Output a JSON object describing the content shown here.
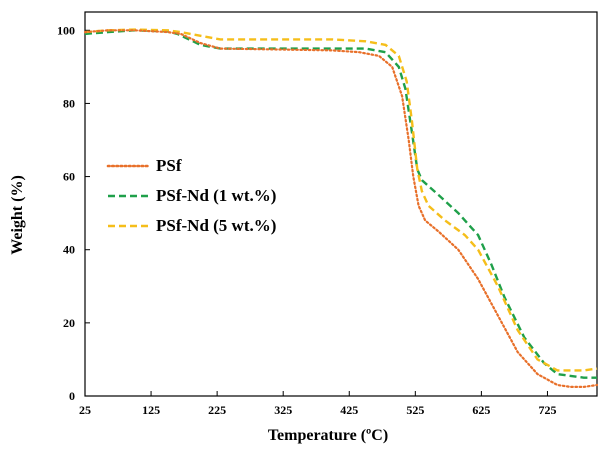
{
  "chart_data": {
    "type": "line",
    "title": "",
    "xlabel": "Temperature (ºC)",
    "ylabel": "Weight (%)",
    "xlim": [
      25,
      800
    ],
    "ylim": [
      0,
      105
    ],
    "x_ticks": [
      "25",
      "125",
      "225",
      "325",
      "425",
      "525",
      "625",
      "725"
    ],
    "y_ticks": [
      "0",
      "20",
      "40",
      "60",
      "80",
      "100"
    ],
    "grid": false,
    "legend_position": "middle-left",
    "series": [
      {
        "name": "PSf",
        "color": "#E8702A",
        "dash": "dotted",
        "x": [
          25,
          60,
          100,
          150,
          170,
          200,
          230,
          300,
          400,
          440,
          470,
          490,
          505,
          515,
          522,
          530,
          540,
          560,
          590,
          620,
          650,
          680,
          710,
          740,
          760,
          780,
          800
        ],
        "y": [
          99.5,
          100,
          100,
          99.5,
          99,
          96.5,
          95,
          94.8,
          94.5,
          94,
          93,
          90,
          82,
          70,
          60,
          52,
          48,
          45,
          40,
          32,
          22,
          12,
          6,
          3,
          2.5,
          2.5,
          3
        ]
      },
      {
        "name": "PSf-Nd (1 wt.%)",
        "color": "#1FA04A",
        "dash": "dashed",
        "x": [
          25,
          60,
          100,
          150,
          165,
          200,
          230,
          300,
          400,
          450,
          480,
          500,
          510,
          520,
          528,
          535,
          560,
          590,
          610,
          620,
          640,
          660,
          690,
          720,
          740,
          760,
          780,
          800
        ],
        "y": [
          99,
          99.5,
          100,
          99.7,
          99,
          96,
          95,
          95,
          95,
          95,
          94,
          90,
          84,
          72,
          62,
          59,
          55,
          50,
          46,
          44,
          36,
          27,
          16,
          9,
          6,
          5.5,
          5,
          5
        ]
      },
      {
        "name": "PSf-Nd (5 wt.%)",
        "color": "#F5BE1A",
        "dash": "dashed",
        "x": [
          25,
          60,
          100,
          150,
          170,
          200,
          230,
          300,
          400,
          450,
          480,
          500,
          512,
          520,
          528,
          535,
          545,
          570,
          600,
          620,
          650,
          680,
          710,
          740,
          760,
          780,
          800
        ],
        "y": [
          99.5,
          100,
          100.2,
          100,
          99.5,
          98.5,
          97.5,
          97.5,
          97.5,
          97,
          96,
          93,
          86,
          75,
          62,
          56,
          52,
          48,
          44,
          40,
          30,
          18,
          10,
          7,
          7,
          7,
          7.5
        ]
      }
    ]
  }
}
